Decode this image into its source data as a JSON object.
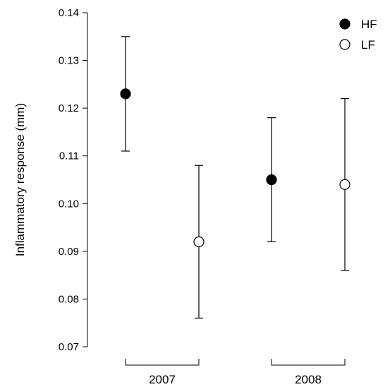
{
  "chart_data": {
    "type": "scatter",
    "ylabel": "Inflammatory response (mm)",
    "ylim": [
      0.07,
      0.14
    ],
    "yticks": [
      "0.07",
      "0.08",
      "0.09",
      "0.10",
      "0.11",
      "0.12",
      "0.13",
      "0.14"
    ],
    "categories": [
      "2007",
      "2008"
    ],
    "legend_position": "top-right",
    "series": [
      {
        "name": "HF",
        "marker": "filled-circle",
        "color": "#000000",
        "points": [
          {
            "category": "2007",
            "mean": 0.123,
            "lower": 0.111,
            "upper": 0.135
          },
          {
            "category": "2008",
            "mean": 0.105,
            "lower": 0.092,
            "upper": 0.118
          }
        ]
      },
      {
        "name": "LF",
        "marker": "open-circle",
        "color": "#000000",
        "points": [
          {
            "category": "2007",
            "mean": 0.092,
            "lower": 0.076,
            "upper": 0.108
          },
          {
            "category": "2008",
            "mean": 0.104,
            "lower": 0.086,
            "upper": 0.122
          }
        ]
      }
    ]
  }
}
